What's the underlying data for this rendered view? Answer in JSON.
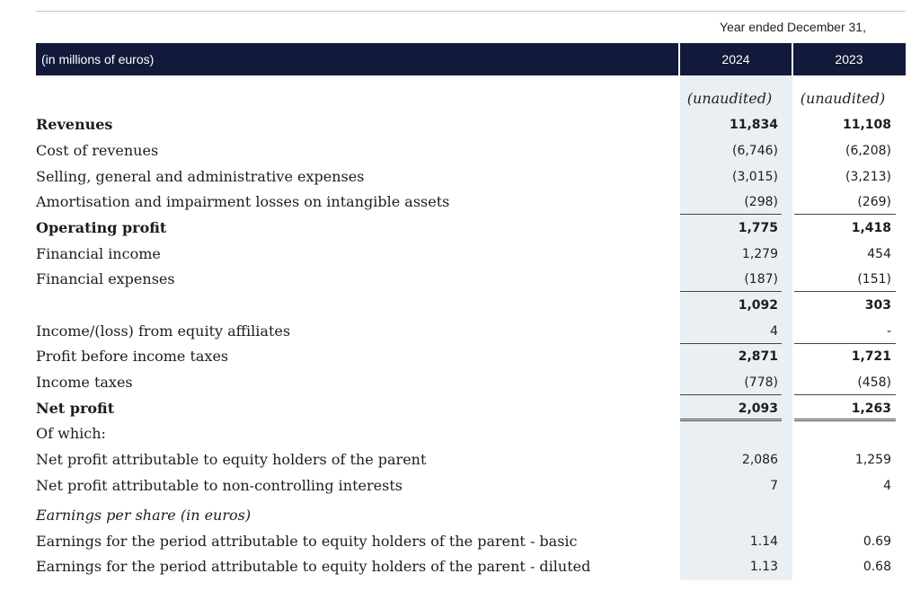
{
  "header": {
    "period_caption": "Year ended December 31,",
    "units_label": "(in millions of euros)",
    "col_2024": "2024",
    "col_2023": "2023",
    "audit_2024": "(unaudited)",
    "audit_2023": "(unaudited)"
  },
  "rows": [
    {
      "label": "Revenues",
      "v2024": "11,834",
      "v2023": "11,108"
    },
    {
      "label": "Cost of revenues",
      "v2024": "(6,746)",
      "v2023": "(6,208)"
    },
    {
      "label": "Selling, general and administrative expenses",
      "v2024": "(3,015)",
      "v2023": "(3,213)"
    },
    {
      "label": "Amortisation and impairment losses on intangible assets",
      "v2024": "(298)",
      "v2023": "(269)"
    },
    {
      "label": "Operating profit",
      "v2024": "1,775",
      "v2023": "1,418"
    },
    {
      "label": "Financial income",
      "v2024": "1,279",
      "v2023": "454"
    },
    {
      "label": "Financial expenses",
      "v2024": "(187)",
      "v2023": "(151)"
    },
    {
      "label": "",
      "v2024": "1,092",
      "v2023": "303"
    },
    {
      "label": "Income/(loss) from equity affiliates",
      "v2024": "4",
      "v2023": "-"
    },
    {
      "label": "Profit before income taxes",
      "v2024": "2,871",
      "v2023": "1,721"
    },
    {
      "label": "Income taxes",
      "v2024": "(778)",
      "v2023": "(458)"
    },
    {
      "label": "Net profit",
      "v2024": "2,093",
      "v2023": "1,263"
    },
    {
      "label": "Of which:",
      "v2024": "",
      "v2023": ""
    },
    {
      "label": "Net profit attributable to equity holders of the parent",
      "v2024": "2,086",
      "v2023": "1,259"
    },
    {
      "label": "Net profit attributable to non-controlling interests",
      "v2024": "7",
      "v2023": "4"
    },
    {
      "label": "Earnings per share (in euros)",
      "v2024": "",
      "v2023": ""
    },
    {
      "label": "Earnings for the period attributable to equity holders of the parent - basic",
      "v2024": "1.14",
      "v2023": "0.69"
    },
    {
      "label": "Earnings for the period attributable to equity holders of the parent - diluted",
      "v2024": "1.13",
      "v2023": "0.68"
    }
  ],
  "colors": {
    "header_band": "#13193a",
    "shaded_column": "#e9eff2"
  }
}
